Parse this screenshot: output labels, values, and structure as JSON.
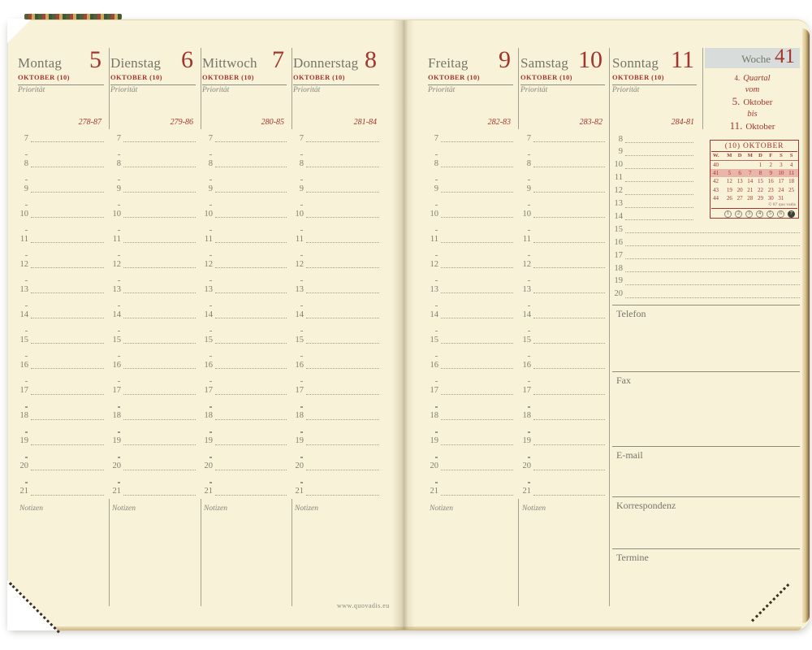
{
  "colors": {
    "accent_red": "#a2352c",
    "gray_text": "#76756a",
    "paper_cream": "#f8f2d9",
    "week_highlight": "#e9b6ab",
    "week_box_bg": "#d8dddb"
  },
  "week_header": {
    "label": "Woche",
    "number": "41",
    "quarter_num": "4.",
    "quarter_label": "Quartal",
    "from_word": "vom",
    "from_day": "5.",
    "from_month": "Oktober",
    "to_word": "bis",
    "to_day": "11.",
    "to_month": "Oktober"
  },
  "days": {
    "left": [
      {
        "name": "Montag",
        "number": "5",
        "month": "OKTOBER (10)",
        "priority_label": "Priorität",
        "code": "278-87"
      },
      {
        "name": "Dienstag",
        "number": "6",
        "month": "OKTOBER (10)",
        "priority_label": "Priorität",
        "code": "279-86"
      },
      {
        "name": "Mittwoch",
        "number": "7",
        "month": "OKTOBER (10)",
        "priority_label": "Priorität",
        "code": "280-85"
      },
      {
        "name": "Donnerstag",
        "number": "8",
        "month": "OKTOBER (10)",
        "priority_label": "Priorität",
        "code": "281-84"
      }
    ],
    "right": [
      {
        "name": "Freitag",
        "number": "9",
        "month": "OKTOBER (10)",
        "priority_label": "Priorität",
        "code": "282-83"
      },
      {
        "name": "Samstag",
        "number": "10",
        "month": "OKTOBER (10)",
        "priority_label": "Priorität",
        "code": "283-82"
      }
    ],
    "sunday": {
      "name": "Sonntag",
      "number": "11",
      "month": "OKTOBER (10)",
      "priority_label": "Priorität",
      "code": "284-81"
    }
  },
  "day_hours": [
    "7",
    "8",
    "9",
    "10",
    "11",
    "12",
    "13",
    "14",
    "15",
    "16",
    "17",
    "18",
    "19",
    "20",
    "21"
  ],
  "sunday_hours": [
    "8",
    "9",
    "10",
    "11",
    "12",
    "13",
    "14",
    "15",
    "16",
    "17",
    "18",
    "19",
    "20"
  ],
  "notes_label": "Notizen",
  "contact_sections": [
    {
      "label": "Telefon"
    },
    {
      "label": "Fax"
    },
    {
      "label": "E-mail"
    },
    {
      "label": "Korrespondenz"
    },
    {
      "label": "Termine"
    }
  ],
  "mini_calendar": {
    "title": "(10) OKTOBER",
    "day_header": [
      "W.",
      "M",
      "D",
      "M",
      "D",
      "F",
      "S",
      "S"
    ],
    "weeks": [
      {
        "week": "40",
        "days": [
          "",
          "",
          "",
          "1",
          "2",
          "3",
          "4"
        ],
        "highlight": false
      },
      {
        "week": "41",
        "days": [
          "5",
          "6",
          "7",
          "8",
          "9",
          "10",
          "11"
        ],
        "highlight": true
      },
      {
        "week": "42",
        "days": [
          "12",
          "13",
          "14",
          "15",
          "16",
          "17",
          "18"
        ],
        "highlight": false
      },
      {
        "week": "43",
        "days": [
          "19",
          "20",
          "21",
          "22",
          "23",
          "24",
          "25"
        ],
        "highlight": false
      },
      {
        "week": "44",
        "days": [
          "26",
          "27",
          "28",
          "29",
          "30",
          "31",
          ""
        ],
        "highlight": false
      }
    ],
    "copyright": "© 87 quo vadis",
    "periods": [
      "1",
      "2",
      "3",
      "4",
      "5",
      "6",
      "7"
    ],
    "active_period": "7"
  },
  "footer_url": "www.quovadis.eu"
}
